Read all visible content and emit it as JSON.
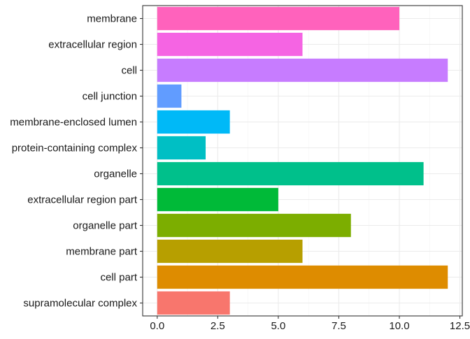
{
  "chart_data": {
    "type": "bar",
    "orientation": "horizontal",
    "categories": [
      "membrane",
      "extracellular region",
      "cell",
      "cell junction",
      "membrane-enclosed lumen",
      "protein-containing complex",
      "organelle",
      "extracellular region part",
      "organelle part",
      "membrane part",
      "cell part",
      "supramolecular complex"
    ],
    "values": [
      10,
      6,
      12,
      1,
      3,
      2,
      11,
      5,
      8,
      6,
      12,
      3
    ],
    "colors": [
      "#FF62BC",
      "#F564E3",
      "#C77CFF",
      "#619CFF",
      "#00B9F7",
      "#00BFC4",
      "#00C08B",
      "#00BA38",
      "#7CAE00",
      "#B79F00",
      "#DE8C00",
      "#F8766D"
    ],
    "x_ticks": [
      "0.0",
      "2.5",
      "5.0",
      "7.5",
      "10.0",
      "12.5"
    ],
    "xlim": [
      -0.6,
      12.6
    ],
    "title": "",
    "xlabel": "",
    "ylabel": "",
    "grid": true,
    "legend": "none"
  }
}
